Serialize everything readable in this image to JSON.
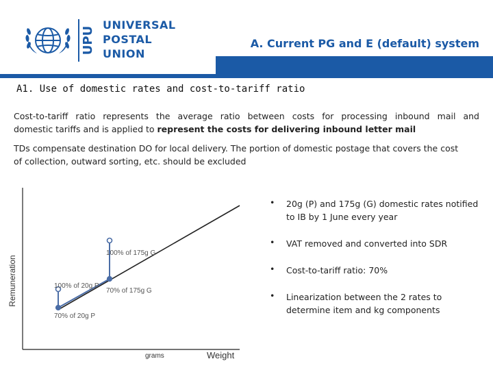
{
  "header": {
    "org_lines": [
      "UNIVERSAL",
      "POSTAL",
      "UNION"
    ],
    "org_acronym": "UPU",
    "title": "A. Current PG and E (default) system",
    "accent_color": "#1b5aa6"
  },
  "subtitle": "A1. Use of domestic rates and cost-to-tariff ratio",
  "paragraph1": {
    "line1": "Cost-to-tariff ratio represents the average ratio between costs for processing inbound mail and",
    "line2_plain": "domestic tariffs and is applied to ",
    "line2_bold": "represent the costs for delivering inbound letter mail"
  },
  "paragraph2": {
    "line1": "TDs compensate destination DO for local delivery. The portion of domestic postage that covers the cost",
    "line2": "of collection, outward sorting, etc. should be excluded"
  },
  "diagram": {
    "y_axis_label": "Remuneration",
    "x_axis_label": "Weight",
    "x_sub_label": "grams",
    "point_labels": {
      "p100_175": "100% of 175g G",
      "p100_20": "100% of 20g P",
      "p70_175": "70% of 175g G",
      "p70_20": "70% of 20g P"
    }
  },
  "bullets": [
    "20g (P) and 175g (G) domestic rates notified to IB by 1 June every year",
    "VAT removed and converted into SDR",
    "Cost-to-tariff ratio: 70%",
    "Linearization between the 2 rates to determine item and kg components"
  ],
  "bullet_symbol": "•"
}
